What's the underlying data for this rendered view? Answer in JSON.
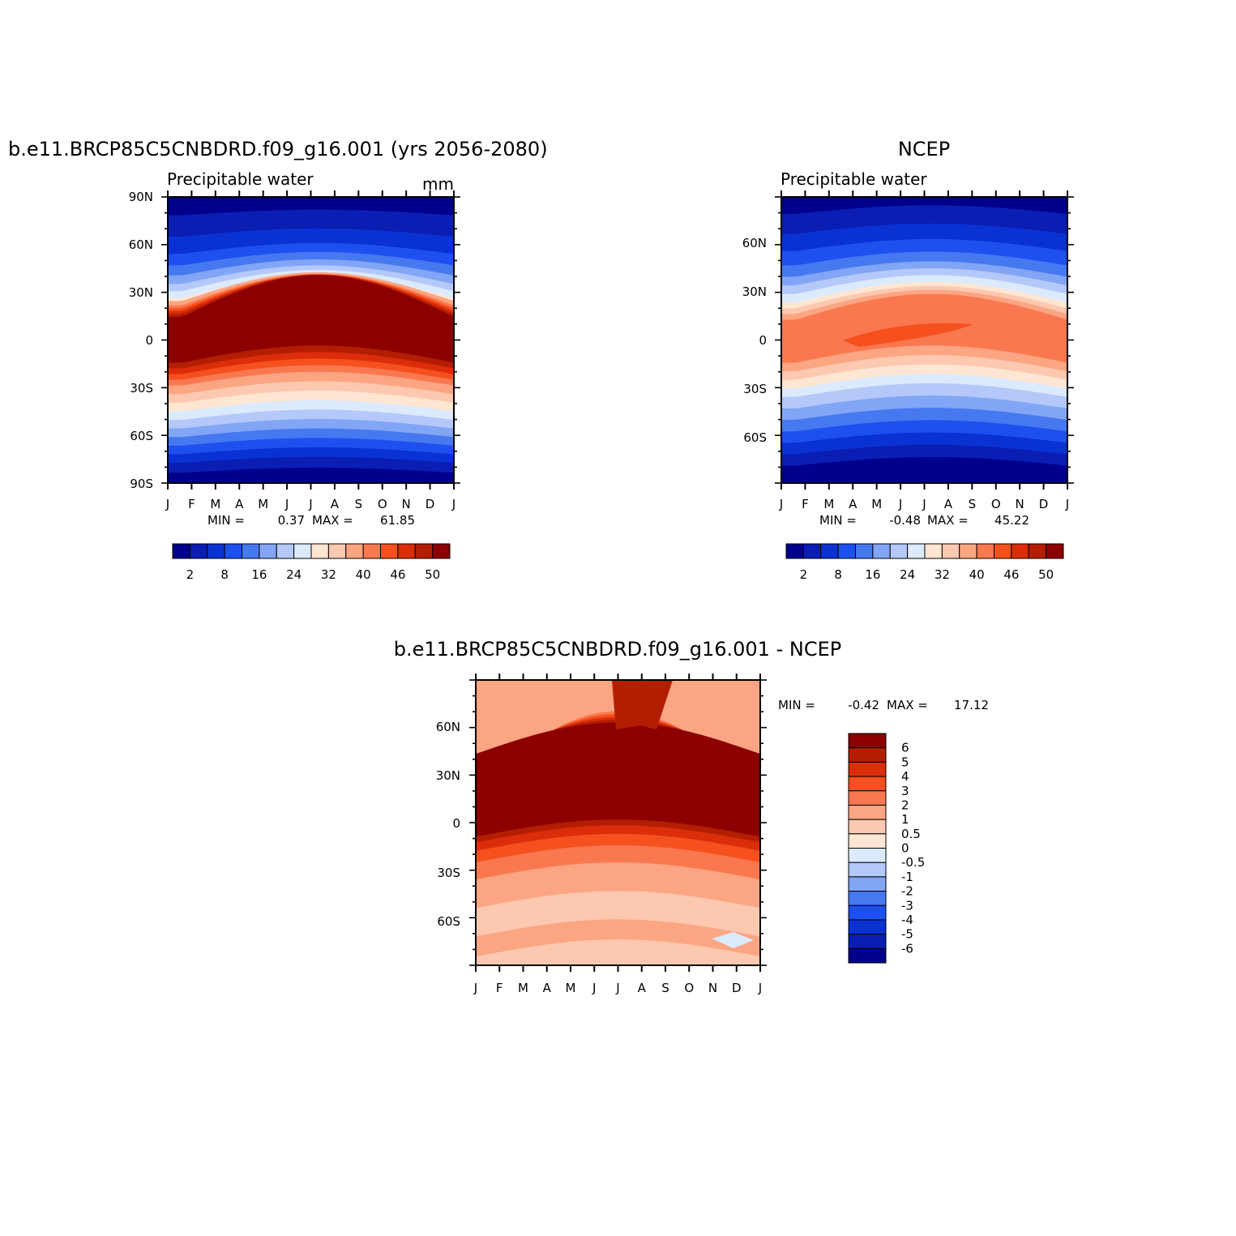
{
  "chart_data": [
    {
      "type": "heatmap",
      "title": "b.e11.BRCP85C5CNBDRD.f09_g16.001 (yrs 2056-2080)",
      "subtitle": "Precipitable water",
      "units": "mm",
      "x_ticks": [
        "J",
        "F",
        "M",
        "A",
        "M",
        "J",
        "J",
        "A",
        "S",
        "O",
        "N",
        "D",
        "J"
      ],
      "y_ticks": [
        "90N",
        "60N",
        "30N",
        "0",
        "30S",
        "60S",
        "90S"
      ],
      "y_range": [
        -90,
        90
      ],
      "min_label": "MIN =",
      "min_value": "0.37",
      "max_label": "MAX =",
      "max_value": "61.85",
      "colorbar_labels": [
        "2",
        "8",
        "16",
        "24",
        "32",
        "40",
        "46",
        "50"
      ]
    },
    {
      "type": "heatmap",
      "title": "NCEP",
      "subtitle": "Precipitable water",
      "x_ticks": [
        "J",
        "F",
        "M",
        "A",
        "M",
        "J",
        "J",
        "A",
        "S",
        "O",
        "N",
        "D",
        "J"
      ],
      "y_ticks": [
        "60N",
        "30N",
        "0",
        "30S",
        "60S"
      ],
      "y_range": [
        -90,
        90
      ],
      "min_label": "MIN =",
      "min_value": "-0.48",
      "max_label": "MAX =",
      "max_value": "45.22",
      "colorbar_labels": [
        "2",
        "8",
        "16",
        "24",
        "32",
        "40",
        "46",
        "50"
      ]
    },
    {
      "type": "heatmap",
      "title": "b.e11.BRCP85C5CNBDRD.f09_g16.001 - NCEP",
      "x_ticks": [
        "J",
        "F",
        "M",
        "A",
        "M",
        "J",
        "J",
        "A",
        "S",
        "O",
        "N",
        "D",
        "J"
      ],
      "y_ticks": [
        "60N",
        "30N",
        "0",
        "30S",
        "60S"
      ],
      "y_range": [
        -90,
        90
      ],
      "min_label": "MIN =",
      "min_value": "-0.42",
      "max_label": "MAX =",
      "max_value": "17.12",
      "colorbar_labels": [
        "6",
        "5",
        "4",
        "3",
        "2",
        "1",
        "0.5",
        "0",
        "-0.5",
        "-1",
        "-2",
        "-3",
        "-4",
        "-5",
        "-6"
      ]
    }
  ],
  "colors": {
    "abs_scale": [
      "#00008c",
      "#0a1eb4",
      "#0a32d2",
      "#1e50f0",
      "#4678f0",
      "#82a5f5",
      "#b4c8fa",
      "#dceafd",
      "#ffe6d2",
      "#fcc8af",
      "#fca582",
      "#fa7850",
      "#f5501e",
      "#dc2d0a",
      "#b41e00",
      "#8c0000"
    ],
    "diff_scale": [
      "#00008c",
      "#0a1eb4",
      "#0a32d2",
      "#1e50f0",
      "#4678f0",
      "#82a5f5",
      "#b4c8fa",
      "#dceafd",
      "#ffe6d2",
      "#fcc8af",
      "#fca582",
      "#fa7850",
      "#f5501e",
      "#dc2d0a",
      "#b41e00",
      "#8c0000"
    ]
  }
}
